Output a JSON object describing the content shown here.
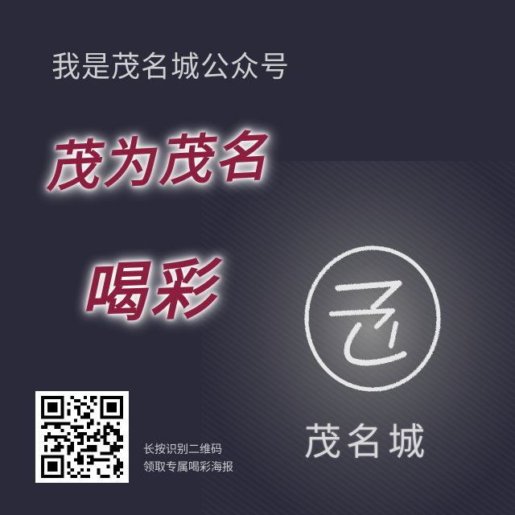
{
  "poster": {
    "headline": "我是茂名城公众号",
    "slogan_line_1": "茂为茂名",
    "slogan_line_2": "喝彩",
    "brand_name": "茂名城",
    "instructions": {
      "line_1": "长按识别二维码",
      "line_2": "领取专属喝彩海报"
    },
    "colors": {
      "background": "#2b2a3a",
      "slogan": "#8c1f3e",
      "slogan_glow": "#ffffff",
      "headline": "#cfcfcf",
      "chalk": "#e6e6e6"
    },
    "icons": {
      "logo": "circle-chalk-logo-icon",
      "qr": "qr-code-icon"
    }
  }
}
